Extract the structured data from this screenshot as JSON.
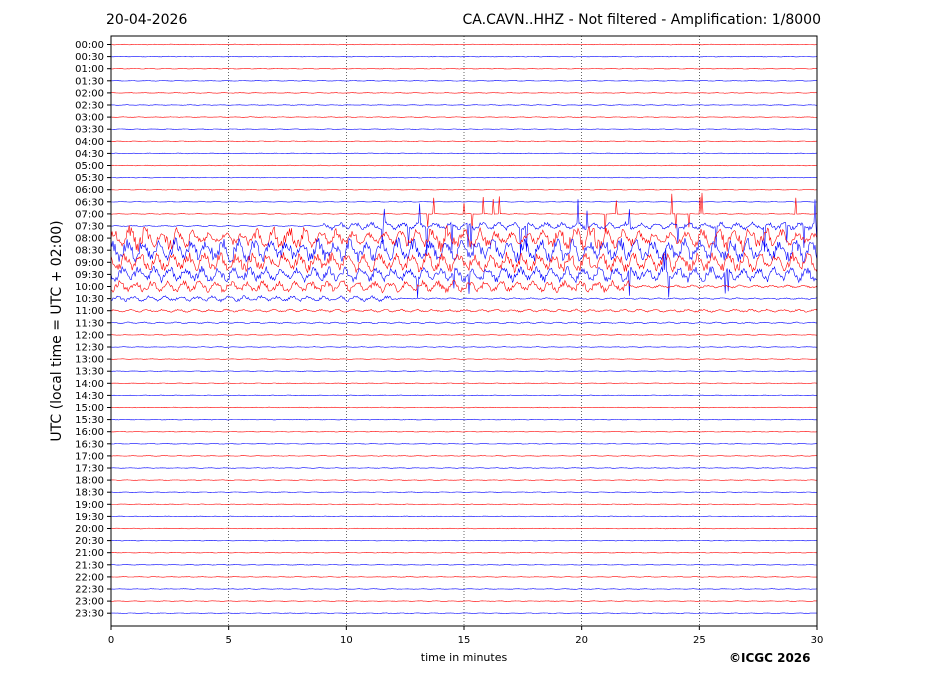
{
  "header": {
    "date": "20-04-2026",
    "station_title": "CA.CAVN..HHZ - Not filtered - Amplification: 1/8000"
  },
  "footer": {
    "copyright": "©ICGC 2026"
  },
  "chart_data": {
    "type": "line",
    "title": "CA.CAVN..HHZ - Not filtered - Amplification: 1/8000",
    "xlabel": "time in minutes",
    "ylabel": "UTC (local time = UTC + 02:00)",
    "xlim": [
      0,
      30
    ],
    "x_ticks": [
      "0",
      "5",
      "10",
      "15",
      "20",
      "25",
      "30"
    ],
    "row_labels": [
      "00:00",
      "00:30",
      "01:00",
      "01:30",
      "02:00",
      "02:30",
      "03:00",
      "03:30",
      "04:00",
      "04:30",
      "05:00",
      "05:30",
      "06:00",
      "06:30",
      "07:00",
      "07:30",
      "08:00",
      "08:30",
      "09:00",
      "09:30",
      "10:00",
      "10:30",
      "11:00",
      "11:30",
      "12:00",
      "12:30",
      "13:00",
      "13:30",
      "14:00",
      "14:30",
      "15:00",
      "15:30",
      "16:00",
      "16:30",
      "17:00",
      "17:30",
      "18:00",
      "18:30",
      "19:00",
      "19:30",
      "20:00",
      "20:30",
      "21:00",
      "21:30",
      "22:00",
      "22:30",
      "23:00",
      "23:30"
    ],
    "trace_colors": [
      "#ff0000",
      "#0000ff"
    ],
    "grid": "vertical dotted every 5 minutes",
    "active_rows": {
      "08:00": "large red oscillations, minutes 0-30",
      "08:30": "large red oscillations, minutes 0-30",
      "09:00": "red oscillations, minutes 0-30",
      "09:30": "large blue spikes, minutes 0-30",
      "10:00": "red oscillations, minutes 0-20",
      "10:30": "blue oscillations, minutes 0-12",
      "11:00": "weak red wiggles"
    }
  }
}
